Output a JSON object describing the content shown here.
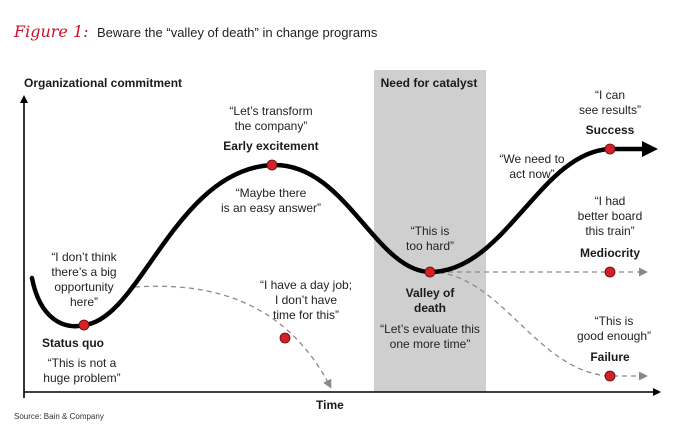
{
  "figure": {
    "label": "Figure 1:",
    "title": "Beware the “valley of death” in change programs",
    "source": "Source: Bain & Company"
  },
  "axes": {
    "y_label": "Organizational commitment",
    "x_label": "Time"
  },
  "catalyst": {
    "label": "Need for catalyst",
    "shade_color": "#cfcfcf"
  },
  "colors": {
    "marker": "#d42027",
    "curve": "#000000",
    "dashed": "#8a8a8a"
  },
  "stages": {
    "status_quo": "Status quo",
    "early_excitement": "Early excitement",
    "valley": "Valley of\ndeath",
    "success": "Success",
    "mediocrity": "Mediocrity",
    "failure": "Failure"
  },
  "quotes": {
    "dont_think": "“I don’t think\nthere’s a big\nopportunity\nhere”",
    "not_huge": "“This is not a\nhuge problem”",
    "transform": "“Let’s transform\nthe company”",
    "easy_answer": "“Maybe there\nis an easy answer”",
    "day_job": "“I have a day job;\nI don’t have\ntime for this”",
    "too_hard": "“This is\ntoo hard”",
    "evaluate": "“Let’s evaluate this\none more time”",
    "need_to_act": "“We need to\nact now”",
    "see_results": "“I can\nsee results”",
    "board_train": "“I had\nbetter board\nthis train”",
    "good_enough": "“This is\ngood enough”"
  }
}
